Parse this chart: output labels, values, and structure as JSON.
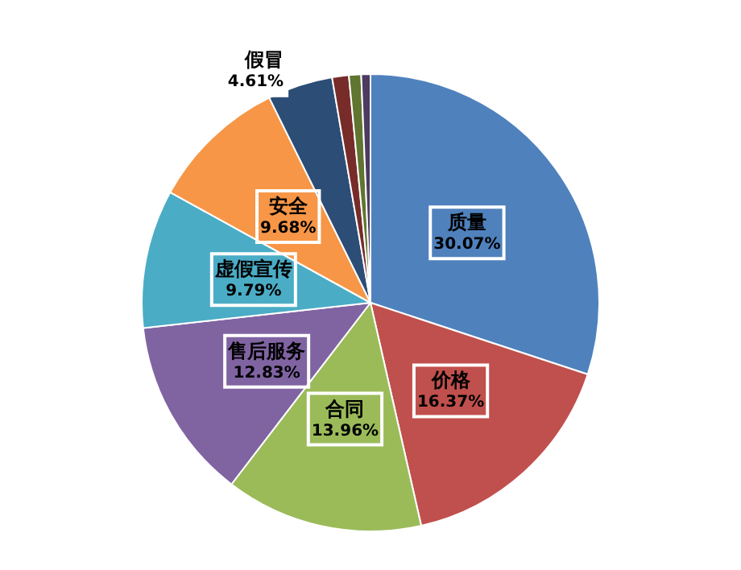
{
  "chart_data": {
    "type": "pie",
    "categories": [
      "质量",
      "价格",
      "合同",
      "售后服务",
      "虚假宣传",
      "安全",
      "假冒",
      null,
      null,
      null
    ],
    "values": [
      30.07,
      16.37,
      13.96,
      12.83,
      9.79,
      9.68,
      4.61,
      1.18,
      0.86,
      0.65
    ],
    "value_labels": [
      "30.07%",
      "16.37%",
      "13.96%",
      "12.83%",
      "9.79%",
      "9.68%",
      "4.61%",
      null,
      null,
      null
    ],
    "colors": [
      "#4f81bd",
      "#c0504d",
      "#9bbb59",
      "#8064a2",
      "#4bacc6",
      "#f79646",
      "#2c4d75",
      "#772c2a",
      "#5f7530",
      "#4d3b62"
    ],
    "legend": false
  }
}
